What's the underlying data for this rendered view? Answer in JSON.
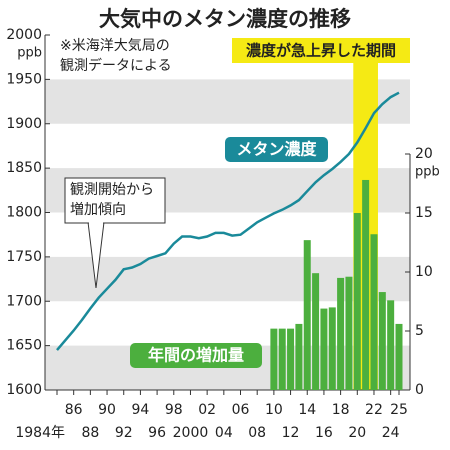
{
  "chart_data": {
    "type": "combo",
    "title": "大気中のメタン濃度の推移",
    "note": [
      "※米海洋大気局の",
      "観測データによる"
    ],
    "y_unit": "ppb",
    "y2_unit": "ppb",
    "highlight": {
      "label": "濃度が急上昇した期間",
      "xlim": [
        2020,
        2022
      ],
      "color": "#f5ea14"
    },
    "annotation": [
      "観測開始から",
      "増加傾向"
    ],
    "xlim": [
      1984,
      2025
    ],
    "xticks": [
      {
        "value": 1984,
        "label": "1984年"
      },
      {
        "value": 1986,
        "label": "86"
      },
      {
        "value": 1988,
        "label": "88"
      },
      {
        "value": 1990,
        "label": "90"
      },
      {
        "value": 1992,
        "label": "92"
      },
      {
        "value": 1994,
        "label": "94"
      },
      {
        "value": 1996,
        "label": "96"
      },
      {
        "value": 1998,
        "label": "98"
      },
      2000,
      {
        "value": 2002,
        "label": "02"
      },
      {
        "value": 2004,
        "label": "04"
      },
      {
        "value": 2006,
        "label": "06"
      },
      {
        "value": 2008,
        "label": "08"
      },
      {
        "value": 2010,
        "label": "10"
      },
      {
        "value": 2012,
        "label": "12"
      },
      {
        "value": 2014,
        "label": "14"
      },
      {
        "value": 2016,
        "label": "16"
      },
      {
        "value": 2018,
        "label": "18"
      },
      {
        "value": 2020,
        "label": "20"
      },
      {
        "value": 2022,
        "label": "22"
      },
      {
        "value": 2024,
        "label": "24"
      },
      {
        "value": 2025,
        "label": "25"
      }
    ],
    "ylim": [
      1600,
      2000
    ],
    "yticks": [
      1600,
      1650,
      1700,
      1750,
      1800,
      1850,
      1900,
      1950,
      2000
    ],
    "y2lim": [
      0,
      20
    ],
    "y2ticks": [
      0,
      5,
      10,
      15,
      20
    ],
    "series": [
      {
        "name": "メタン濃度",
        "type": "line",
        "color": "#1a8a9a",
        "x": [
          1984,
          1985,
          1986,
          1987,
          1988,
          1989,
          1990,
          1991,
          1992,
          1993,
          1994,
          1995,
          1996,
          1997,
          1998,
          1999,
          2000,
          2001,
          2002,
          2003,
          2004,
          2005,
          2006,
          2007,
          2008,
          2009,
          2010,
          2011,
          2012,
          2013,
          2014,
          2015,
          2016,
          2017,
          2018,
          2019,
          2020,
          2021,
          2022,
          2023,
          2024,
          2025
        ],
        "values": [
          1645,
          1656,
          1667,
          1679,
          1692,
          1704,
          1714,
          1724,
          1736,
          1738,
          1742,
          1748,
          1751,
          1754,
          1765,
          1773,
          1773,
          1771,
          1773,
          1777,
          1777,
          1774,
          1775,
          1782,
          1789,
          1794,
          1799,
          1803,
          1808,
          1814,
          1824,
          1834,
          1842,
          1849,
          1857,
          1866,
          1879,
          1895,
          1912,
          1922,
          1930,
          1935
        ]
      },
      {
        "name": "年間の増加量",
        "type": "bar",
        "axis": "y2",
        "color": "#4caf3e",
        "x": [
          2010,
          2011,
          2012,
          2013,
          2014,
          2015,
          2016,
          2017,
          2018,
          2019,
          2020,
          2021,
          2022,
          2023,
          2024,
          2025
        ],
        "values": [
          5.2,
          5.2,
          5.2,
          5.6,
          12.7,
          9.9,
          6.9,
          7.0,
          9.5,
          9.6,
          15.0,
          17.8,
          13.2,
          8.3,
          7.6,
          5.6
        ]
      }
    ]
  }
}
